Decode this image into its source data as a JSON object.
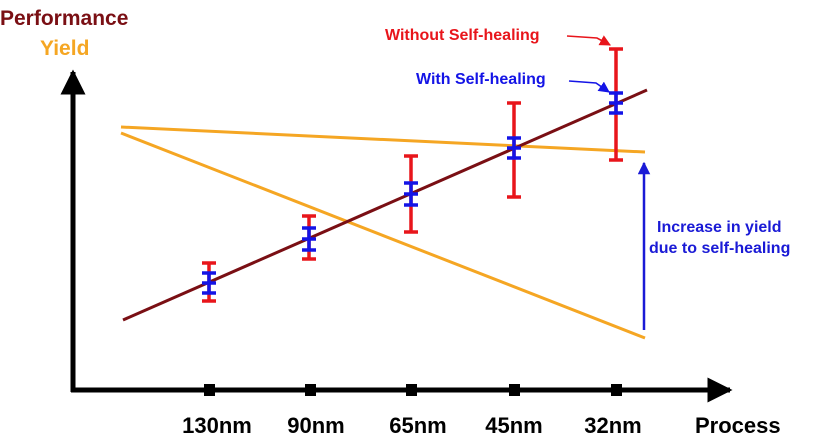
{
  "labels": {
    "performance": "Performance",
    "yield": "Yield",
    "process": "Process",
    "without_self_healing": "Without Self-healing",
    "with_self_healing": "With Self-healing",
    "increase_line1": "Increase in yield",
    "increase_line2": "due to self-healing"
  },
  "ticks": [
    "130nm",
    "90nm",
    "65nm",
    "45nm",
    "32nm"
  ],
  "colors": {
    "performance_line": "#7a0f14",
    "yield": "#f5a623",
    "without": "#e8151b",
    "with": "#1414e6",
    "increase_arrow": "#1a1ad6",
    "axis": "#000000"
  }
}
